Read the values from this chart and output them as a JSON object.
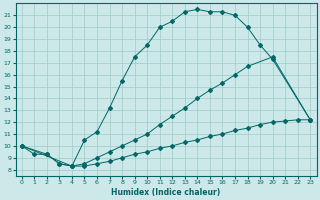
{
  "title": "",
  "xlabel": "Humidex (Indice chaleur)",
  "bg_color": "#cce8e8",
  "line_color": "#006666",
  "grid_color": "#99cccc",
  "xlim": [
    -0.5,
    23.5
  ],
  "ylim": [
    7.5,
    22.0
  ],
  "xticks": [
    0,
    1,
    2,
    3,
    4,
    5,
    6,
    7,
    8,
    9,
    10,
    11,
    12,
    13,
    14,
    15,
    16,
    17,
    18,
    19,
    20,
    21,
    22,
    23
  ],
  "yticks": [
    8,
    9,
    10,
    11,
    12,
    13,
    14,
    15,
    16,
    17,
    18,
    19,
    20,
    21
  ],
  "line1_x": [
    0,
    1,
    2,
    3,
    4,
    5,
    6,
    7,
    8,
    9,
    10,
    11,
    12,
    13,
    14,
    15,
    16,
    17,
    18,
    19,
    20,
    23
  ],
  "line1_y": [
    10.0,
    9.3,
    9.3,
    8.5,
    8.3,
    10.5,
    11.2,
    13.2,
    15.5,
    17.5,
    18.5,
    20.0,
    20.5,
    21.3,
    21.5,
    21.3,
    21.3,
    21.0,
    20.0,
    18.5,
    17.3,
    12.2
  ],
  "line2_x": [
    0,
    4,
    5,
    6,
    7,
    8,
    9,
    10,
    11,
    12,
    13,
    14,
    15,
    16,
    17,
    18,
    20,
    23
  ],
  "line2_y": [
    10.0,
    8.3,
    8.5,
    9.0,
    9.5,
    10.0,
    10.5,
    11.0,
    11.8,
    12.5,
    13.2,
    14.0,
    14.7,
    15.3,
    16.0,
    16.7,
    17.5,
    12.2
  ],
  "line3_x": [
    0,
    2,
    3,
    4,
    5,
    6,
    7,
    8,
    9,
    10,
    11,
    12,
    13,
    14,
    15,
    16,
    17,
    18,
    19,
    20,
    21,
    22,
    23
  ],
  "line3_y": [
    10.0,
    9.3,
    8.5,
    8.3,
    8.3,
    8.5,
    8.7,
    9.0,
    9.3,
    9.5,
    9.8,
    10.0,
    10.3,
    10.5,
    10.8,
    11.0,
    11.3,
    11.5,
    11.8,
    12.0,
    12.1,
    12.2,
    12.2
  ]
}
